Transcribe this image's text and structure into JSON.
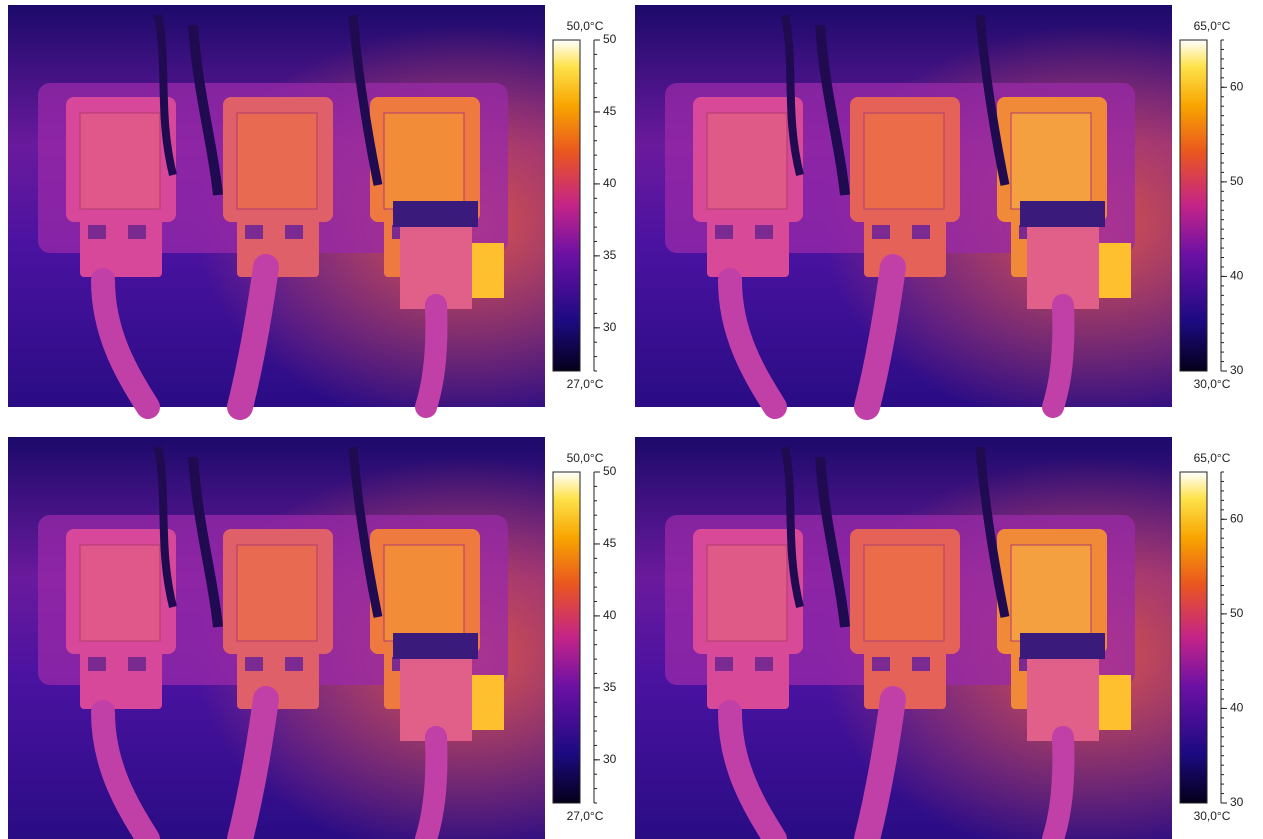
{
  "panels": [
    {
      "max_label": "50,0°C",
      "min_label": "27,0°C",
      "ylim": [
        27,
        50
      ],
      "yticks": [
        30,
        35,
        40,
        45,
        50
      ]
    },
    {
      "max_label": "65,0°C",
      "min_label": "30,0°C",
      "ylim": [
        30,
        65
      ],
      "yticks": [
        30,
        40,
        50,
        60
      ]
    },
    {
      "max_label": "50,0°C",
      "min_label": "27,0°C",
      "ylim": [
        27,
        50
      ],
      "yticks": [
        30,
        35,
        40,
        45,
        50
      ]
    },
    {
      "max_label": "65,0°C",
      "min_label": "30,0°C",
      "ylim": [
        30,
        65
      ],
      "yticks": [
        30,
        40,
        50,
        60
      ]
    }
  ]
}
